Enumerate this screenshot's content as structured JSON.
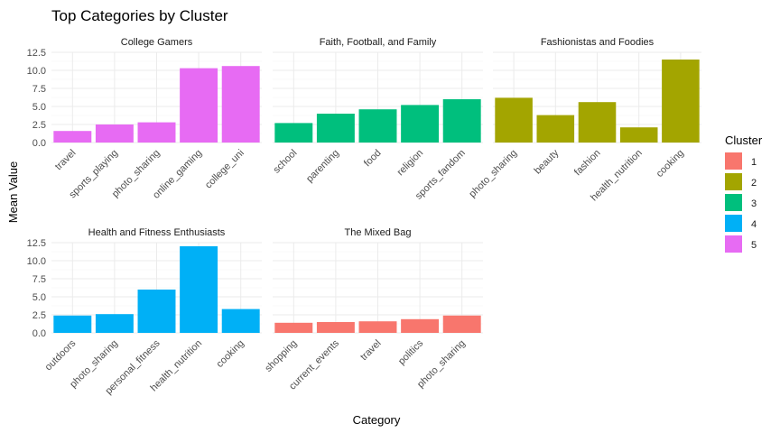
{
  "chart_data": {
    "type": "bar",
    "title": "Top Categories by Cluster",
    "xlabel": "Category",
    "ylabel": "Mean Value",
    "ylim": [
      0,
      12.5
    ],
    "yticks": [
      "0.0",
      "2.5",
      "5.0",
      "7.5",
      "10.0",
      "12.5"
    ],
    "ytick_values": [
      0,
      2.5,
      5,
      7.5,
      10,
      12.5
    ],
    "legend": {
      "title": "Cluster",
      "position": "right",
      "entries": [
        {
          "label": "1",
          "color": "#F8766D"
        },
        {
          "label": "2",
          "color": "#A3A500"
        },
        {
          "label": "3",
          "color": "#00BF7D"
        },
        {
          "label": "4",
          "color": "#00B0F6"
        },
        {
          "label": "5",
          "color": "#E76BF3"
        }
      ]
    },
    "facets": [
      {
        "title": "College Gamers",
        "cluster": "5",
        "color": "#E76BF3",
        "categories": [
          "travel",
          "sports_playing",
          "photo_sharing",
          "online_gaming",
          "college_uni"
        ],
        "values": [
          1.6,
          2.5,
          2.8,
          10.3,
          10.6
        ]
      },
      {
        "title": "Faith, Football, and Family",
        "cluster": "3",
        "color": "#00BF7D",
        "categories": [
          "school",
          "parenting",
          "food",
          "religion",
          "sports_fandom"
        ],
        "values": [
          2.7,
          4.0,
          4.6,
          5.2,
          6.0
        ]
      },
      {
        "title": "Fashionistas and Foodies",
        "cluster": "2",
        "color": "#A3A500",
        "categories": [
          "photo_sharing",
          "beauty",
          "fashion",
          "health_nutrition",
          "cooking"
        ],
        "values": [
          6.2,
          3.8,
          5.6,
          2.1,
          11.5
        ]
      },
      {
        "title": "Health and Fitness Enthusiasts",
        "cluster": "4",
        "color": "#00B0F6",
        "categories": [
          "outdoors",
          "photo_sharing",
          "personal_fitness",
          "health_nutrition",
          "cooking"
        ],
        "values": [
          2.4,
          2.6,
          6.0,
          12.0,
          3.3
        ]
      },
      {
        "title": "The Mixed Bag",
        "cluster": "1",
        "color": "#F8766D",
        "categories": [
          "shopping",
          "current_events",
          "travel",
          "politics",
          "photo_sharing"
        ],
        "values": [
          1.4,
          1.5,
          1.6,
          1.9,
          2.4
        ]
      }
    ],
    "grid": true
  }
}
